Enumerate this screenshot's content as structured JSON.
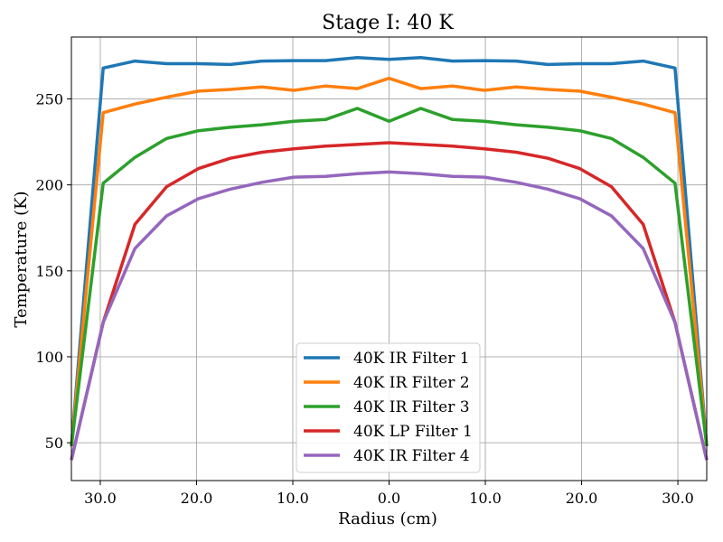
{
  "chart_data": {
    "type": "line",
    "title": "Stage I: 40 K",
    "xlabel": "Radius (cm)",
    "ylabel": "Temperature (K)",
    "xlim": [
      -33,
      33
    ],
    "ylim": [
      28,
      286
    ],
    "grid": true,
    "legend_position": "lower-center",
    "x_ticks": [
      -30,
      -20,
      -10,
      0,
      10,
      20,
      30
    ],
    "x_tick_labels": [
      "30.0",
      "20.0",
      "10.0",
      "0.0",
      "10.0",
      "20.0",
      "30.0"
    ],
    "y_ticks": [
      50,
      100,
      150,
      200,
      250
    ],
    "y_tick_labels": [
      "50",
      "100",
      "150",
      "200",
      "250"
    ],
    "x": [
      -33,
      -29.7,
      -26.4,
      -23.1,
      -19.8,
      -16.5,
      -13.2,
      -9.9,
      -6.6,
      -3.3,
      0,
      3.3,
      6.6,
      9.9,
      13.2,
      16.5,
      19.8,
      23.1,
      26.4,
      29.7,
      33
    ],
    "series": [
      {
        "name": "40K IR Filter 1",
        "color": "#1f77b4",
        "values": [
          48,
          268,
          272,
          270.5,
          270.5,
          270,
          272,
          272.3,
          272.3,
          274,
          273,
          274,
          272,
          272.3,
          272,
          270,
          270.5,
          270.5,
          272,
          268,
          48
        ]
      },
      {
        "name": "40K IR Filter 2",
        "color": "#ff7f0e",
        "values": [
          48,
          242,
          247,
          251,
          254.5,
          255.5,
          257,
          255,
          257.5,
          256,
          262,
          256,
          257.5,
          255,
          257,
          255.5,
          254.5,
          251,
          247,
          242,
          48
        ]
      },
      {
        "name": "40K IR Filter 3",
        "color": "#2ca02c",
        "values": [
          48,
          201,
          216,
          227,
          231.5,
          233.5,
          235,
          237,
          238,
          244.5,
          237,
          244.5,
          238,
          237,
          235,
          233.5,
          231.5,
          227,
          216,
          201,
          48
        ]
      },
      {
        "name": "40K LP Filter 1",
        "color": "#d62728",
        "values": [
          40,
          120,
          177,
          199,
          209.5,
          215.5,
          219,
          221,
          222.5,
          223.5,
          224.5,
          223.5,
          222.5,
          221,
          219,
          215.5,
          209.5,
          199,
          177,
          120,
          40
        ]
      },
      {
        "name": "40K IR Filter 4",
        "color": "#9467bd",
        "values": [
          40,
          120,
          163,
          182,
          192,
          197.5,
          201.5,
          204.5,
          205,
          206.5,
          207.5,
          206.5,
          205,
          204.5,
          201.5,
          197.5,
          192,
          182,
          163,
          120,
          40
        ]
      }
    ]
  }
}
